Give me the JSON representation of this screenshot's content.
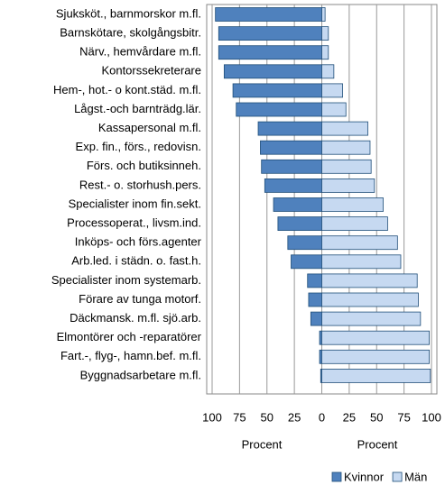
{
  "chart_data": {
    "type": "butterfly",
    "categories": [
      "Sjuksköt., barnmorskor m.fl.",
      "Barnskötare, skolgångsbitr.",
      "Närv., hemvårdare m.fl.",
      "Kontorssekreterare",
      "Hem-, hot.- o kont.städ. m.fl.",
      "Lågst.-och barnträdg.lär.",
      "Kassapersonal m.fl.",
      "Exp. fin., förs., redovisn.",
      "Förs. och butiksinneh.",
      "Rest.- o. storhush.pers.",
      "Specialister inom fin.sekt.",
      "Processoperat., livsm.ind.",
      "Inköps- och förs.agenter",
      "Arb.led. i städn. o. fast.h.",
      "Specialister inom systemarb.",
      "Förare av tunga motorf.",
      "Däckmansk. m.fl. sjö.arb.",
      "Elmontörer och -reparatörer",
      "Fart.-, flyg-, hamn.bef. m.fl.",
      "Byggnadsarbetare m.fl."
    ],
    "series": [
      {
        "name": "Kvinnor",
        "color": "#4f81bd",
        "side": "left",
        "values": [
          97,
          94,
          94,
          89,
          81,
          78,
          58,
          56,
          55,
          52,
          44,
          40,
          31,
          28,
          13,
          12,
          10,
          2,
          2,
          1
        ]
      },
      {
        "name": "Män",
        "color": "#c6d9f1",
        "side": "right",
        "values": [
          3,
          6,
          6,
          11,
          19,
          22,
          42,
          44,
          45,
          48,
          56,
          60,
          69,
          72,
          87,
          88,
          90,
          98,
          98,
          99
        ]
      }
    ],
    "xlim": [
      -100,
      100
    ],
    "xticks": [
      {
        "value": -100,
        "label": "100"
      },
      {
        "value": -75,
        "label": "75"
      },
      {
        "value": -50,
        "label": "50"
      },
      {
        "value": -25,
        "label": "25"
      },
      0,
      25,
      50,
      75,
      100
    ],
    "xlabel_left": "Procent",
    "xlabel_right": "Procent",
    "grid": true,
    "legend": "bottom"
  }
}
